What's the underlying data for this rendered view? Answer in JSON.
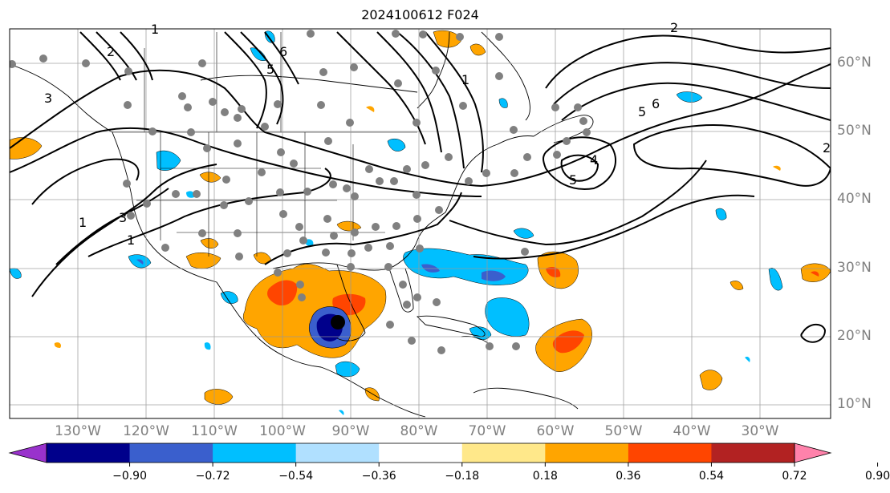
{
  "title": "2024100612 F024",
  "map": {
    "projection": "PlateCarree",
    "lon_range": [
      -138,
      -17
    ],
    "lat_range": [
      7.5,
      65
    ],
    "gridlines": true,
    "lon_labels": [
      "130°W",
      "120°W",
      "110°W",
      "100°W",
      "90°W",
      "80°W",
      "70°W",
      "60°W",
      "50°W",
      "40°W",
      "30°W"
    ],
    "lat_labels": [
      "60°N",
      "50°N",
      "40°N",
      "30°N",
      "20°N",
      "10°N"
    ],
    "contour_labels": [
      "1",
      "2",
      "3",
      "5",
      "6",
      "1",
      "2",
      "5",
      "6",
      "4",
      "2",
      "1",
      "3",
      "1",
      "5"
    ],
    "storm_marker": "hurricane-center-dot",
    "station_markers": "gray-dots"
  },
  "colorbar": {
    "orientation": "horizontal",
    "extend": "both",
    "colors": [
      "#9932cc",
      "#00008b",
      "#3a5fcd",
      "#00bfff",
      "#b0e0ff",
      "#ffffff",
      "#ffe88a",
      "#ffa500",
      "#ff4500",
      "#b22222",
      "#ff82ab"
    ],
    "tick_labels": [
      "−0.90",
      "−0.72",
      "−0.54",
      "−0.36",
      "−0.18",
      "0.18",
      "0.36",
      "0.54",
      "0.72",
      "0.90"
    ]
  }
}
